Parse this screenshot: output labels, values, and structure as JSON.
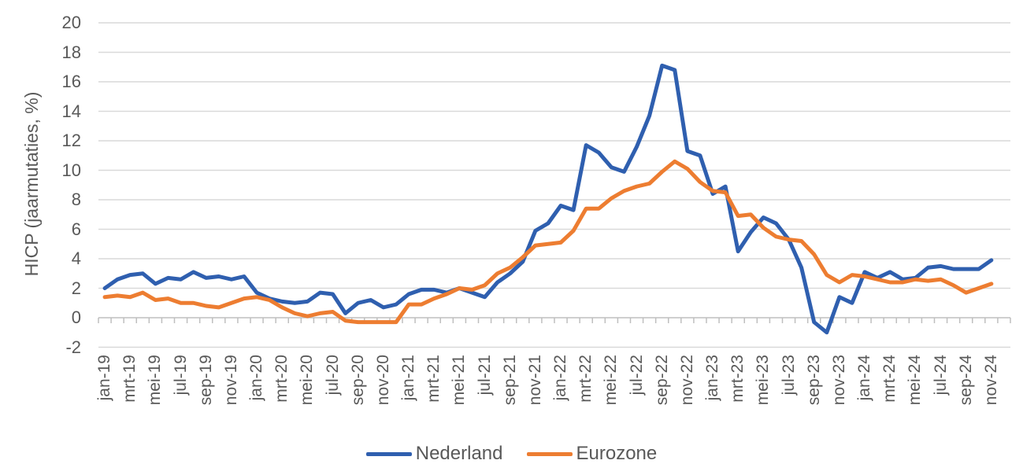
{
  "chart_data": {
    "type": "line",
    "title": "",
    "xlabel": "",
    "ylabel": "HICP (jaarmutaties, %)",
    "ylim": [
      -2,
      20
    ],
    "ytick_step": 2,
    "grid": true,
    "legend_position": "bottom-center",
    "x_label_interval": 2,
    "gridline_color": "#d9d9d9",
    "axis_color": "#bfbfbf",
    "tick_label_color": "#595959",
    "categories": [
      "jan-19",
      "feb-19",
      "mrt-19",
      "apr-19",
      "mei-19",
      "jun-19",
      "jul-19",
      "aug-19",
      "sep-19",
      "okt-19",
      "nov-19",
      "dec-19",
      "jan-20",
      "feb-20",
      "mrt-20",
      "apr-20",
      "mei-20",
      "jun-20",
      "jul-20",
      "aug-20",
      "sep-20",
      "okt-20",
      "nov-20",
      "dec-20",
      "jan-21",
      "feb-21",
      "mrt-21",
      "apr-21",
      "mei-21",
      "jun-21",
      "jul-21",
      "aug-21",
      "sep-21",
      "okt-21",
      "nov-21",
      "dec-21",
      "jan-22",
      "feb-22",
      "mrt-22",
      "apr-22",
      "mei-22",
      "jun-22",
      "jul-22",
      "aug-22",
      "sep-22",
      "okt-22",
      "nov-22",
      "dec-22",
      "jan-23",
      "feb-23",
      "mrt-23",
      "apr-23",
      "mei-23",
      "jun-23",
      "jul-23",
      "aug-23",
      "sep-23",
      "okt-23",
      "nov-23",
      "dec-23",
      "jan-24",
      "feb-24",
      "mrt-24",
      "apr-24",
      "mei-24",
      "jun-24",
      "jul-24",
      "aug-24",
      "sep-24",
      "okt-24",
      "nov-24"
    ],
    "series": [
      {
        "name": "Nederland",
        "color": "#2f5faf",
        "values": [
          2.0,
          2.6,
          2.9,
          3.0,
          2.3,
          2.7,
          2.6,
          3.1,
          2.7,
          2.8,
          2.6,
          2.8,
          1.7,
          1.3,
          1.1,
          1.0,
          1.1,
          1.7,
          1.6,
          0.3,
          1.0,
          1.2,
          0.7,
          0.9,
          1.6,
          1.9,
          1.9,
          1.7,
          2.0,
          1.7,
          1.4,
          2.4,
          3.0,
          3.8,
          5.9,
          6.4,
          7.6,
          7.3,
          11.7,
          11.2,
          10.2,
          9.9,
          11.6,
          13.7,
          17.1,
          16.8,
          11.3,
          11.0,
          8.4,
          8.9,
          4.5,
          5.8,
          6.8,
          6.4,
          5.3,
          3.4,
          -0.3,
          -1.0,
          1.4,
          1.0,
          3.1,
          2.7,
          3.1,
          2.6,
          2.7,
          3.4,
          3.5,
          3.3,
          3.3,
          3.3,
          3.9
        ]
      },
      {
        "name": "Eurozone",
        "color": "#ed7d31",
        "values": [
          1.4,
          1.5,
          1.4,
          1.7,
          1.2,
          1.3,
          1.0,
          1.0,
          0.8,
          0.7,
          1.0,
          1.3,
          1.4,
          1.2,
          0.7,
          0.3,
          0.1,
          0.3,
          0.4,
          -0.2,
          -0.3,
          -0.3,
          -0.3,
          -0.3,
          0.9,
          0.9,
          1.3,
          1.6,
          2.0,
          1.9,
          2.2,
          3.0,
          3.4,
          4.1,
          4.9,
          5.0,
          5.1,
          5.9,
          7.4,
          7.4,
          8.1,
          8.6,
          8.9,
          9.1,
          9.9,
          10.6,
          10.1,
          9.2,
          8.6,
          8.5,
          6.9,
          7.0,
          6.1,
          5.5,
          5.3,
          5.2,
          4.3,
          2.9,
          2.4,
          2.9,
          2.8,
          2.6,
          2.4,
          2.4,
          2.6,
          2.5,
          2.6,
          2.2,
          1.7,
          2.0,
          2.3
        ]
      }
    ]
  }
}
